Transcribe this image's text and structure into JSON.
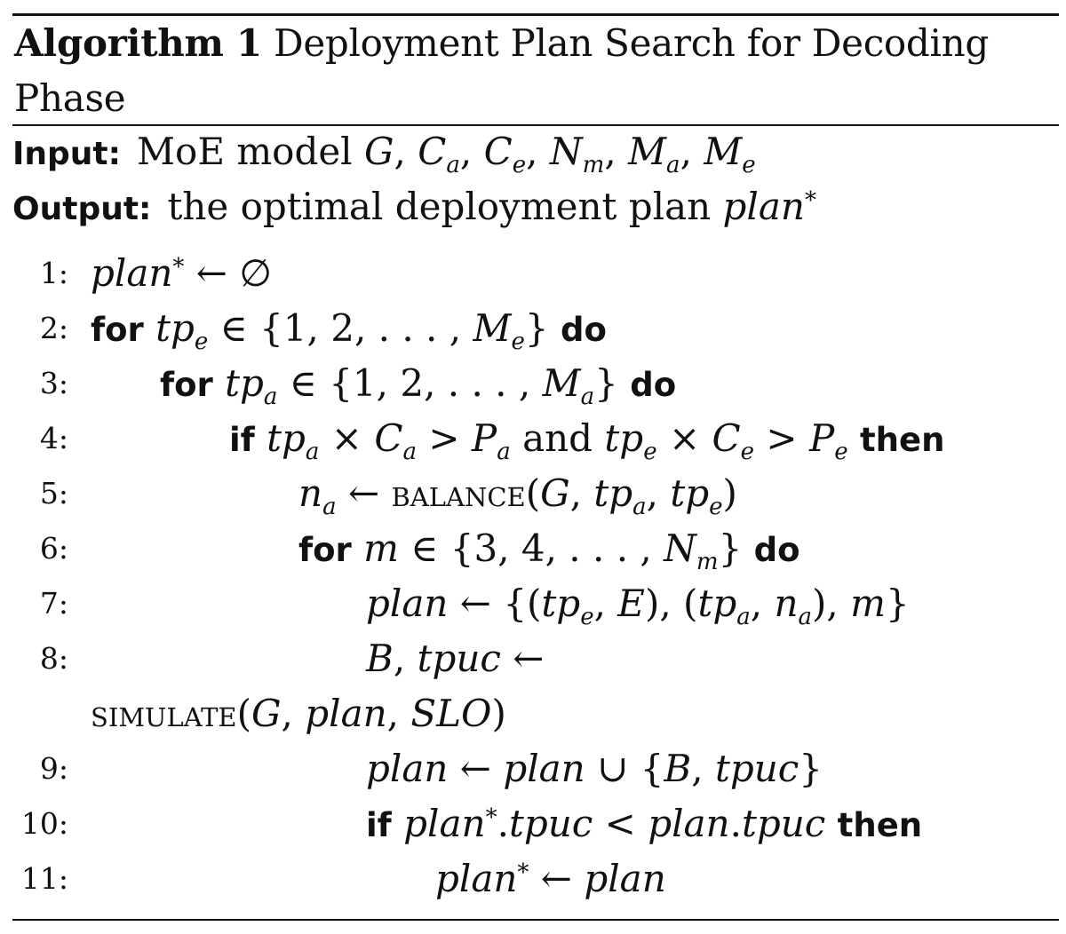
{
  "caption": {
    "label": "Algorithm 1",
    "title_line1": "Deployment Plan Search for Decoding",
    "title_line2": "Phase"
  },
  "input": {
    "key": "Input:",
    "model_text": "MoE model"
  },
  "output": {
    "key": "Output:",
    "text": "the optimal deployment plan"
  },
  "keywords": {
    "for": "for",
    "do": "do",
    "if": "if",
    "then": "then",
    "and": "and"
  },
  "procedures": {
    "balance": "balance",
    "simulate": "simulate"
  },
  "line_numbers": [
    "1:",
    "2:",
    "3:",
    "4:",
    "5:",
    "6:",
    "7:",
    "8:",
    "9:",
    "10:",
    "11:"
  ]
}
